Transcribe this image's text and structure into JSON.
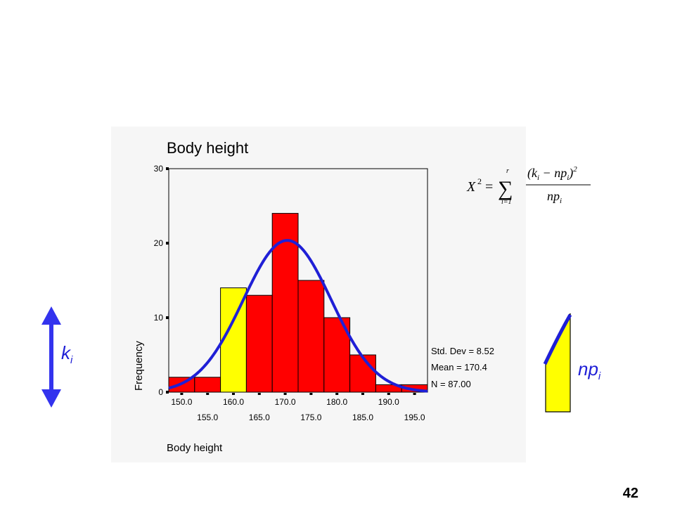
{
  "slide_number": "42",
  "colors": {
    "bar": "#ff0000",
    "highlight_bar": "#ffff00",
    "curve": "#1f1fd6",
    "arrow": "#3333ee",
    "panel": "#f6f6f6"
  },
  "chart_data": {
    "type": "bar",
    "title": "Body height",
    "xlabel": "Body height",
    "ylabel": "Frequency",
    "bin_width": 5,
    "x": [
      150.0,
      155.0,
      160.0,
      165.0,
      170.0,
      175.0,
      180.0,
      185.0,
      190.0,
      195.0
    ],
    "values": [
      2,
      2,
      14,
      13,
      24,
      15,
      10,
      5,
      1,
      1
    ],
    "highlight_index": 2,
    "xlim": [
      147.5,
      197.5
    ],
    "ylim": [
      0,
      30
    ],
    "y_ticks": [
      "0",
      "10",
      "20",
      "30"
    ],
    "x_ticks_upper": [
      "150.0",
      "160.0",
      "170.0",
      "180.0",
      "190.0"
    ],
    "x_ticks_lower": [
      "155.0",
      "165.0",
      "175.0",
      "185.0",
      "195.0"
    ],
    "stats": [
      "Std. Dev = 8.52",
      "Mean = 170.4",
      "N = 87.00"
    ],
    "normal_curve": {
      "mean": 170.4,
      "sd": 8.52,
      "n": 87
    },
    "grid": false
  },
  "formula": {
    "lhs": "X",
    "lhs_sup": "2",
    "equals": "=",
    "sum_symbol": "∑",
    "sum_top": "r",
    "sum_bottom": "i=1",
    "numerator": "(k",
    "numerator_sub1": "i",
    "numerator_mid": " − np",
    "numerator_sub2": "i",
    "numerator_end": ")",
    "numerator_sup": "2",
    "denominator": "np",
    "denominator_sub": "i"
  },
  "labels": {
    "k": "k",
    "k_sub": "i",
    "np": "np",
    "np_sub": "i"
  }
}
